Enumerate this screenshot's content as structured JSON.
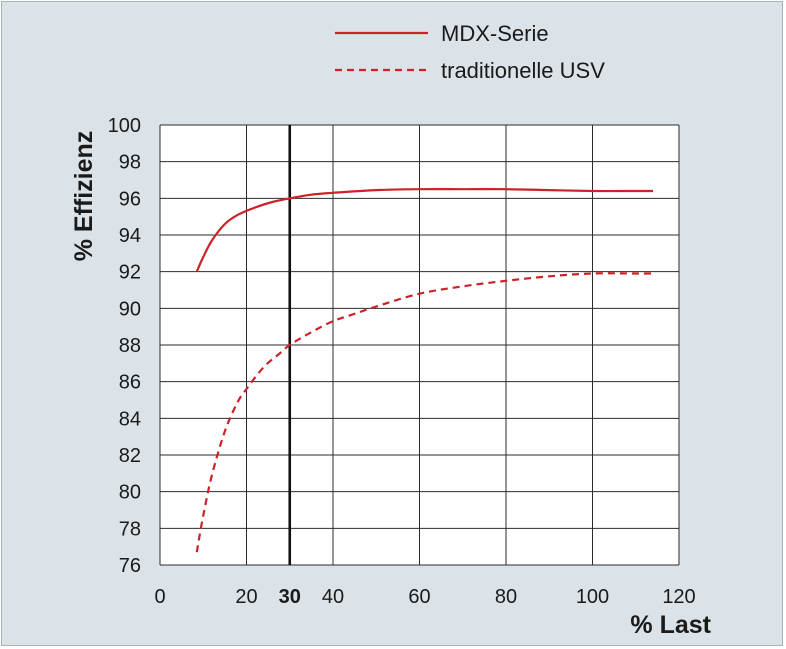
{
  "chart_data": {
    "type": "line",
    "xlabel": "% Last",
    "ylabel": "% Effizienz",
    "xlim": [
      0,
      120
    ],
    "ylim": [
      76,
      100
    ],
    "x_ticks": [
      0,
      20,
      30,
      40,
      60,
      80,
      100,
      120
    ],
    "x_tick_labels": [
      "0",
      "20",
      "30",
      "40",
      "60",
      "80",
      "100",
      "120"
    ],
    "x_highlight_tick": 30,
    "x_gridlines": [
      0,
      20,
      40,
      60,
      80,
      100,
      120
    ],
    "y_ticks": [
      76,
      78,
      80,
      82,
      84,
      86,
      88,
      90,
      92,
      94,
      96,
      98,
      100
    ],
    "y_tick_labels": [
      "76",
      "78",
      "80",
      "82",
      "84",
      "86",
      "88",
      "90",
      "92",
      "94",
      "96",
      "98",
      "100"
    ],
    "grid": true,
    "reference_line": {
      "x": 30
    },
    "legend_position": "top-right",
    "series": [
      {
        "name": "MDX-Serie",
        "style": "solid",
        "color": "#cc2229",
        "points": [
          [
            8.5,
            92
          ],
          [
            10,
            92.8
          ],
          [
            12,
            93.7
          ],
          [
            15,
            94.6
          ],
          [
            18,
            95.1
          ],
          [
            22,
            95.5
          ],
          [
            26,
            95.8
          ],
          [
            30,
            96.0
          ],
          [
            35,
            96.2
          ],
          [
            40,
            96.3
          ],
          [
            50,
            96.45
          ],
          [
            60,
            96.5
          ],
          [
            70,
            96.5
          ],
          [
            80,
            96.5
          ],
          [
            90,
            96.45
          ],
          [
            100,
            96.4
          ],
          [
            110,
            96.4
          ],
          [
            114,
            96.4
          ]
        ]
      },
      {
        "name": "traditionelle USV",
        "style": "dashed",
        "color": "#cc2229",
        "points": [
          [
            8.5,
            76.7
          ],
          [
            10,
            78.7
          ],
          [
            12,
            80.9
          ],
          [
            15,
            83.3
          ],
          [
            18,
            84.9
          ],
          [
            20,
            85.6
          ],
          [
            24,
            86.8
          ],
          [
            28,
            87.6
          ],
          [
            30,
            88.0
          ],
          [
            35,
            88.7
          ],
          [
            40,
            89.3
          ],
          [
            45,
            89.7
          ],
          [
            50,
            90.1
          ],
          [
            60,
            90.8
          ],
          [
            70,
            91.2
          ],
          [
            80,
            91.5
          ],
          [
            90,
            91.75
          ],
          [
            100,
            91.9
          ],
          [
            110,
            91.9
          ],
          [
            114,
            91.9
          ]
        ]
      }
    ]
  }
}
